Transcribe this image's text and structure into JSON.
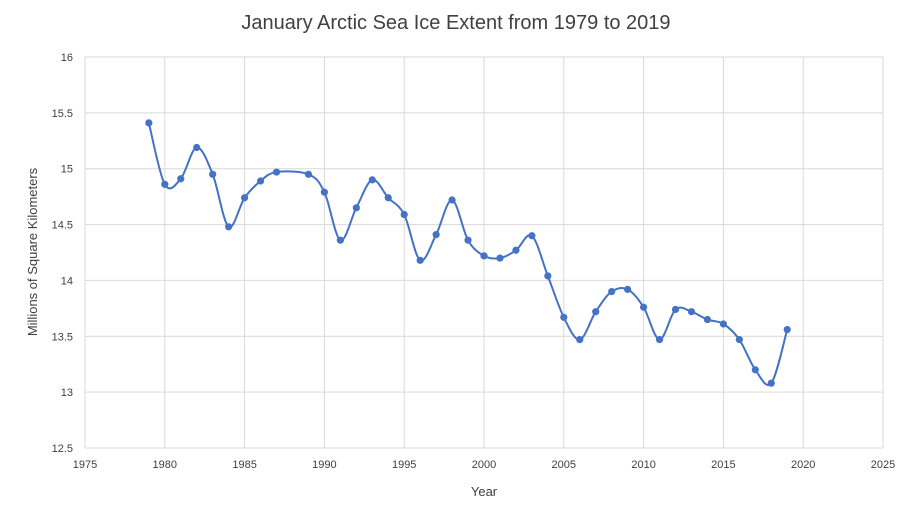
{
  "chart_data": {
    "type": "scatter",
    "title": "January Arctic Sea Ice Extent from 1979 to 2019",
    "xlabel": "Year",
    "ylabel": "Millions of Square Kilometers",
    "xlim": [
      1975,
      2025
    ],
    "ylim": [
      12.5,
      16
    ],
    "xticks": [
      1975,
      1980,
      1985,
      1990,
      1995,
      2000,
      2005,
      2010,
      2015,
      2020,
      2025
    ],
    "yticks": [
      12.5,
      13,
      13.5,
      14,
      14.5,
      15,
      15.5,
      16
    ],
    "grid": true,
    "legend": "none",
    "smoothed_line": true,
    "color": "#4472c4",
    "series": [
      {
        "x": [
          1979,
          1980,
          1981,
          1982,
          1983,
          1984,
          1985,
          1986,
          1987,
          1989,
          1990,
          1991,
          1992,
          1993,
          1994,
          1995,
          1996,
          1997,
          1998,
          1999,
          2000,
          2001,
          2002,
          2003,
          2004,
          2005,
          2006,
          2007,
          2008,
          2009,
          2010,
          2011,
          2012,
          2013,
          2014,
          2015,
          2016,
          2017,
          2018,
          2019
        ],
        "y": [
          15.41,
          14.86,
          14.91,
          15.19,
          14.95,
          14.48,
          14.74,
          14.89,
          14.97,
          14.95,
          14.79,
          14.36,
          14.65,
          14.9,
          14.74,
          14.59,
          14.18,
          14.41,
          14.72,
          14.36,
          14.22,
          14.2,
          14.27,
          14.4,
          14.04,
          13.67,
          13.47,
          13.72,
          13.9,
          13.92,
          13.76,
          13.47,
          13.74,
          13.72,
          13.65,
          13.61,
          13.47,
          13.2,
          13.08,
          13.56
        ]
      }
    ]
  }
}
